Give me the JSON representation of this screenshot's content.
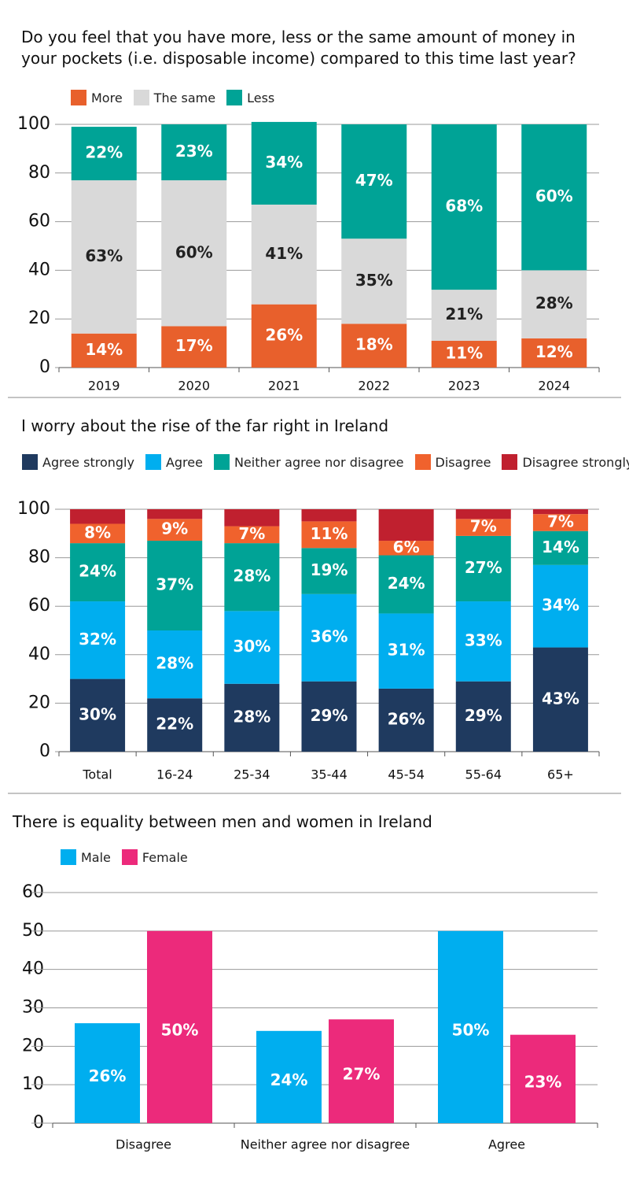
{
  "chart_data": [
    {
      "type": "stacked-bar",
      "title": "Do you feel that you have more, less or the same amount of money in your pockets (i.e. disposable income) compared to this time last year?",
      "categories": [
        "2019",
        "2020",
        "2021",
        "2022",
        "2023",
        "2024"
      ],
      "series": [
        {
          "name": "More",
          "color": "#e8602c",
          "values": [
            14,
            17,
            26,
            18,
            11,
            12
          ],
          "value_labels": [
            "14%",
            "17%",
            "26%",
            "18%",
            "11%",
            "12%"
          ]
        },
        {
          "name": "The same",
          "color": "#d9d9d9",
          "values": [
            63,
            60,
            41,
            35,
            21,
            28
          ],
          "value_labels": [
            "63%",
            "60%",
            "41%",
            "35%",
            "21%",
            "28%"
          ]
        },
        {
          "name": "Less",
          "color": "#00a396",
          "values": [
            22,
            23,
            34,
            47,
            68,
            60
          ],
          "value_labels": [
            "22%",
            "23%",
            "34%",
            "47%",
            "68%",
            "60%"
          ]
        }
      ],
      "ylim": [
        0,
        100
      ],
      "yticks": [
        0,
        20,
        40,
        60,
        80,
        100
      ],
      "grid": true
    },
    {
      "type": "stacked-bar",
      "title": "I worry about the rise of the far right in Ireland",
      "categories": [
        "Total",
        "16-24",
        "25-34",
        "35-44",
        "45-54",
        "55-64",
        "65+"
      ],
      "series": [
        {
          "name": "Agree strongly",
          "color": "#1f3a5f",
          "values": [
            30,
            22,
            28,
            29,
            26,
            29,
            43
          ],
          "value_labels": [
            "30%",
            "22%",
            "28%",
            "29%",
            "26%",
            "29%",
            "43%"
          ]
        },
        {
          "name": "Agree",
          "color": "#00aeef",
          "values": [
            32,
            28,
            30,
            36,
            31,
            33,
            34
          ],
          "value_labels": [
            "32%",
            "28%",
            "30%",
            "36%",
            "31%",
            "33%",
            "34%"
          ]
        },
        {
          "name": "Neither agree nor disagree",
          "color": "#00a396",
          "values": [
            24,
            37,
            28,
            19,
            24,
            27,
            14
          ],
          "value_labels": [
            "24%",
            "37%",
            "28%",
            "19%",
            "24%",
            "27%",
            "14%"
          ]
        },
        {
          "name": "Disagree",
          "color": "#f0622d",
          "values": [
            8,
            9,
            7,
            11,
            6,
            7,
            7
          ],
          "value_labels": [
            "8%",
            "9%",
            "7%",
            "11%",
            "6%",
            "7%",
            "7%"
          ]
        },
        {
          "name": "Disagree strongly",
          "color": "#c0202f",
          "values": [
            6,
            4,
            7,
            5,
            13,
            4,
            2
          ]
        }
      ],
      "ylim": [
        0,
        100
      ],
      "yticks": [
        0,
        20,
        40,
        60,
        80,
        100
      ],
      "grid": true
    },
    {
      "type": "grouped-bar",
      "title": "There is equality between men and women in Ireland",
      "categories": [
        "Disagree",
        "Neither agree nor disagree",
        "Agree"
      ],
      "series": [
        {
          "name": "Male",
          "color": "#00aeef",
          "values": [
            26,
            24,
            50
          ],
          "value_labels": [
            "26%",
            "24%",
            "50%"
          ]
        },
        {
          "name": "Female",
          "color": "#ec2a7b",
          "values": [
            50,
            27,
            23
          ],
          "value_labels": [
            "50%",
            "27%",
            "23%"
          ]
        }
      ],
      "ylim": [
        0,
        60
      ],
      "yticks": [
        0,
        10,
        20,
        30,
        40,
        50,
        60
      ],
      "grid": true
    }
  ]
}
